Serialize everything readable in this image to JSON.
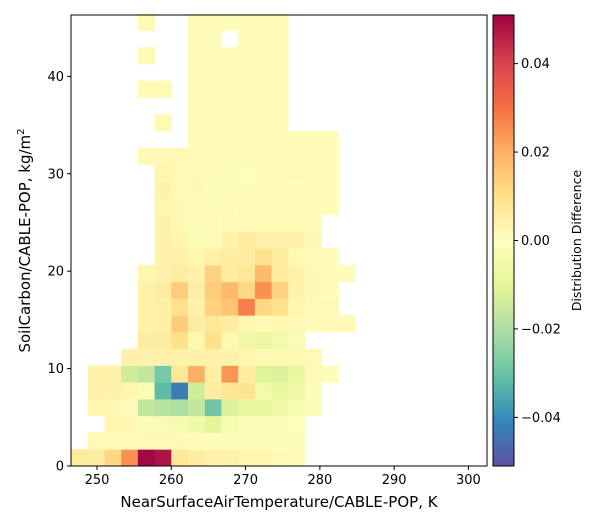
{
  "chart_data": {
    "type": "heatmap",
    "xlabel": "NearSurfaceAirTemperature/CABLE-POP,  K",
    "ylabel_main": "SoilCarbon/CABLE-POP,  kg/m",
    "ylabel_sup": "2",
    "xlim": [
      246.5,
      302.5
    ],
    "ylim": [
      0,
      46.3
    ],
    "xticks": [
      250,
      260,
      270,
      280,
      290,
      300
    ],
    "yticks": [
      0,
      10,
      20,
      30,
      40
    ],
    "colorbar": {
      "label": "Distribution Difference",
      "vmin": -0.051,
      "vmax": 0.051,
      "ticks": [
        -0.04,
        -0.02,
        0.0,
        0.02,
        0.04
      ],
      "tick_labels": [
        "−0.04",
        "−0.02",
        "0.00",
        "0.02",
        "0.04"
      ],
      "colormap": "Spectral_r"
    },
    "bin_edges_x": [
      246.5,
      248.75,
      251.0,
      253.25,
      255.5,
      257.75,
      260.0,
      262.25,
      264.5,
      266.75,
      269.0,
      271.25,
      273.5,
      275.75,
      278.0,
      280.25,
      282.5,
      284.75
    ],
    "bin_edges_y": [
      0,
      1.72,
      3.44,
      5.16,
      6.88,
      8.6,
      10.32,
      12.04,
      13.76,
      15.48,
      17.2,
      18.92,
      20.64,
      22.36,
      24.08,
      25.8,
      27.52,
      29.24,
      30.96,
      32.68,
      34.4,
      36.12,
      37.84,
      39.56,
      41.28,
      43.0,
      44.72,
      46.44
    ],
    "cells": [
      [
        0,
        0,
        0.007
      ],
      [
        1,
        0,
        0.006
      ],
      [
        2,
        0,
        0.012
      ],
      [
        3,
        0,
        0.025
      ],
      [
        4,
        0,
        0.05
      ],
      [
        5,
        0,
        0.048
      ],
      [
        6,
        0,
        0.008
      ],
      [
        7,
        0,
        0.006
      ],
      [
        8,
        0,
        0.004
      ],
      [
        9,
        0,
        0.004
      ],
      [
        10,
        0,
        0.003
      ],
      [
        11,
        0,
        0.003
      ],
      [
        12,
        0,
        0.002
      ],
      [
        13,
        0,
        0.001
      ],
      [
        1,
        1,
        0.002
      ],
      [
        2,
        1,
        0.002
      ],
      [
        3,
        1,
        0.002
      ],
      [
        4,
        1,
        0.002
      ],
      [
        5,
        1,
        0.002
      ],
      [
        6,
        1,
        0.002
      ],
      [
        7,
        1,
        0.001
      ],
      [
        8,
        1,
        0.001
      ],
      [
        9,
        1,
        0.001
      ],
      [
        10,
        1,
        0.001
      ],
      [
        11,
        1,
        0.001
      ],
      [
        12,
        1,
        0.001
      ],
      [
        13,
        1,
        0.001
      ],
      [
        2,
        2,
        0.003
      ],
      [
        3,
        2,
        0.002
      ],
      [
        4,
        2,
        -0.002
      ],
      [
        5,
        2,
        -0.003
      ],
      [
        6,
        2,
        -0.004
      ],
      [
        7,
        2,
        -0.006
      ],
      [
        8,
        2,
        -0.01
      ],
      [
        9,
        2,
        -0.004
      ],
      [
        10,
        2,
        -0.003
      ],
      [
        11,
        2,
        -0.002
      ],
      [
        12,
        2,
        -0.002
      ],
      [
        13,
        2,
        -0.001
      ],
      [
        1,
        3,
        0.003
      ],
      [
        2,
        3,
        0.002
      ],
      [
        3,
        3,
        0.001
      ],
      [
        4,
        3,
        -0.016
      ],
      [
        5,
        3,
        -0.018
      ],
      [
        6,
        3,
        -0.02
      ],
      [
        7,
        3,
        -0.016
      ],
      [
        8,
        3,
        -0.029
      ],
      [
        9,
        3,
        -0.012
      ],
      [
        10,
        3,
        -0.008
      ],
      [
        11,
        3,
        -0.009
      ],
      [
        12,
        3,
        -0.006
      ],
      [
        13,
        3,
        -0.004
      ],
      [
        14,
        3,
        0.001
      ],
      [
        1,
        4,
        0.004
      ],
      [
        2,
        4,
        0.004
      ],
      [
        3,
        4,
        0.003
      ],
      [
        4,
        4,
        -0.002
      ],
      [
        5,
        4,
        -0.032
      ],
      [
        6,
        4,
        -0.043
      ],
      [
        7,
        4,
        -0.014
      ],
      [
        8,
        4,
        0.006
      ],
      [
        9,
        4,
        0.008
      ],
      [
        10,
        4,
        0.009
      ],
      [
        11,
        4,
        -0.005
      ],
      [
        12,
        4,
        -0.008
      ],
      [
        13,
        4,
        -0.006
      ],
      [
        14,
        4,
        0.001
      ],
      [
        1,
        5,
        0.004
      ],
      [
        2,
        5,
        0.004
      ],
      [
        3,
        5,
        -0.014
      ],
      [
        4,
        5,
        -0.016
      ],
      [
        5,
        5,
        -0.028
      ],
      [
        6,
        5,
        0.008
      ],
      [
        7,
        5,
        0.02
      ],
      [
        8,
        5,
        0.005
      ],
      [
        9,
        5,
        0.024
      ],
      [
        10,
        5,
        0.006
      ],
      [
        11,
        5,
        -0.011
      ],
      [
        12,
        5,
        -0.012
      ],
      [
        13,
        5,
        -0.008
      ],
      [
        14,
        5,
        0.002
      ],
      [
        15,
        5,
        0.001
      ],
      [
        3,
        6,
        0.004
      ],
      [
        4,
        6,
        0.004
      ],
      [
        5,
        6,
        0.004
      ],
      [
        6,
        6,
        0.004
      ],
      [
        7,
        6,
        0.004
      ],
      [
        8,
        6,
        0.004
      ],
      [
        9,
        6,
        0.004
      ],
      [
        10,
        6,
        0.003
      ],
      [
        11,
        6,
        0.002
      ],
      [
        12,
        6,
        0.002
      ],
      [
        13,
        6,
        0.002
      ],
      [
        14,
        6,
        0.002
      ],
      [
        4,
        7,
        0.006
      ],
      [
        5,
        7,
        0.006
      ],
      [
        6,
        7,
        0.01
      ],
      [
        7,
        7,
        0.003
      ],
      [
        8,
        7,
        0.01
      ],
      [
        9,
        7,
        0.002
      ],
      [
        10,
        7,
        -0.006
      ],
      [
        11,
        7,
        -0.007
      ],
      [
        12,
        7,
        -0.005
      ],
      [
        13,
        7,
        -0.003
      ]
    ],
    "cells_upper": [
      [
        4,
        8,
        0.004
      ],
      [
        5,
        8,
        0.005
      ],
      [
        6,
        8,
        0.014
      ],
      [
        7,
        8,
        0.006
      ],
      [
        8,
        8,
        0.008
      ],
      [
        9,
        8,
        0.006
      ],
      [
        10,
        8,
        0.003
      ],
      [
        11,
        8,
        0.002
      ],
      [
        12,
        8,
        0.003
      ],
      [
        13,
        8,
        0.002
      ],
      [
        14,
        8,
        0.001
      ],
      [
        15,
        8,
        0.002
      ],
      [
        16,
        8,
        0.002
      ],
      [
        4,
        9,
        0.004
      ],
      [
        5,
        9,
        0.005
      ],
      [
        6,
        9,
        0.01
      ],
      [
        7,
        9,
        0.004
      ],
      [
        8,
        9,
        0.013
      ],
      [
        9,
        9,
        0.016
      ],
      [
        10,
        9,
        0.028
      ],
      [
        11,
        9,
        0.012
      ],
      [
        12,
        9,
        0.01
      ],
      [
        13,
        9,
        0.003
      ],
      [
        14,
        9,
        0.002
      ],
      [
        15,
        9,
        0.002
      ],
      [
        4,
        10,
        0.004
      ],
      [
        5,
        10,
        0.006
      ],
      [
        6,
        10,
        0.014
      ],
      [
        7,
        10,
        0.005
      ],
      [
        8,
        10,
        0.014
      ],
      [
        9,
        10,
        0.018
      ],
      [
        10,
        10,
        0.012
      ],
      [
        11,
        10,
        0.025
      ],
      [
        12,
        10,
        0.013
      ],
      [
        13,
        10,
        0.004
      ],
      [
        14,
        10,
        0.002
      ],
      [
        15,
        10,
        0.001
      ],
      [
        4,
        11,
        0.003
      ],
      [
        5,
        11,
        0.004
      ],
      [
        6,
        11,
        0.006
      ],
      [
        7,
        11,
        0.004
      ],
      [
        8,
        11,
        0.013
      ],
      [
        9,
        11,
        0.006
      ],
      [
        10,
        11,
        0.008
      ],
      [
        11,
        11,
        0.018
      ],
      [
        12,
        11,
        0.007
      ],
      [
        13,
        11,
        0.004
      ],
      [
        14,
        11,
        0.002
      ],
      [
        15,
        11,
        0.001
      ],
      [
        16,
        11,
        0.001
      ],
      [
        5,
        12,
        0.004
      ],
      [
        6,
        12,
        0.004
      ],
      [
        7,
        12,
        0.003
      ],
      [
        8,
        12,
        0.005
      ],
      [
        9,
        12,
        0.006
      ],
      [
        10,
        12,
        0.006
      ],
      [
        11,
        12,
        0.01
      ],
      [
        12,
        12,
        0.007
      ],
      [
        13,
        12,
        0.002
      ],
      [
        14,
        12,
        0.001
      ],
      [
        15,
        12,
        0.001
      ],
      [
        5,
        13,
        0.004
      ],
      [
        6,
        13,
        0.003
      ],
      [
        7,
        13,
        -0.002
      ],
      [
        8,
        13,
        0.001
      ],
      [
        9,
        13,
        0.004
      ],
      [
        10,
        13,
        0.006
      ],
      [
        11,
        13,
        0.004
      ],
      [
        12,
        13,
        0.004
      ],
      [
        13,
        13,
        0.004
      ],
      [
        14,
        13,
        0.002
      ],
      [
        5,
        14,
        0.004
      ],
      [
        6,
        14,
        0.002
      ],
      [
        7,
        14,
        0.001
      ],
      [
        8,
        14,
        0.001
      ],
      [
        9,
        14,
        0.002
      ],
      [
        10,
        14,
        0.002
      ],
      [
        11,
        14,
        0.001
      ],
      [
        12,
        14,
        0.002
      ],
      [
        13,
        14,
        0.002
      ],
      [
        14,
        14,
        0.001
      ],
      [
        5,
        15,
        0.003
      ],
      [
        6,
        15,
        0.002
      ],
      [
        7,
        15,
        0.001
      ],
      [
        8,
        15,
        0.001
      ],
      [
        9,
        15,
        0.001
      ],
      [
        10,
        15,
        0.002
      ],
      [
        11,
        15,
        0.001
      ],
      [
        12,
        15,
        0.002
      ],
      [
        13,
        15,
        0.001
      ],
      [
        14,
        15,
        0.001
      ],
      [
        15,
        15,
        0.001
      ],
      [
        5,
        16,
        0.004
      ],
      [
        6,
        16,
        0.002
      ],
      [
        7,
        16,
        0.002
      ],
      [
        8,
        16,
        -0.002
      ],
      [
        9,
        16,
        0.001
      ],
      [
        10,
        16,
        0.001
      ],
      [
        11,
        16,
        0.001
      ],
      [
        12,
        16,
        0.001
      ],
      [
        13,
        16,
        0.001
      ],
      [
        14,
        16,
        0.002
      ],
      [
        15,
        16,
        0.001
      ],
      [
        5,
        17,
        0.003
      ],
      [
        6,
        17,
        0.002
      ],
      [
        7,
        17,
        0.002
      ],
      [
        8,
        17,
        0.001
      ],
      [
        9,
        17,
        0.001
      ],
      [
        10,
        17,
        -0.001
      ],
      [
        11,
        17,
        0.001
      ],
      [
        12,
        17,
        0.001
      ],
      [
        13,
        17,
        0.002
      ],
      [
        14,
        17,
        0.001
      ],
      [
        15,
        17,
        0.001
      ],
      [
        4,
        18,
        0.002
      ],
      [
        5,
        18,
        0.002
      ],
      [
        6,
        18,
        0.002
      ],
      [
        7,
        18,
        0.002
      ],
      [
        8,
        18,
        0.001
      ],
      [
        9,
        18,
        0.001
      ],
      [
        10,
        18,
        0.001
      ],
      [
        11,
        18,
        0.001
      ],
      [
        12,
        18,
        0.001
      ],
      [
        13,
        18,
        0.001
      ],
      [
        14,
        18,
        0.001
      ],
      [
        15,
        18,
        0.001
      ],
      [
        7,
        19,
        0.001
      ],
      [
        8,
        19,
        0.001
      ],
      [
        9,
        19,
        0.001
      ],
      [
        10,
        19,
        0.001
      ],
      [
        11,
        19,
        0.001
      ],
      [
        12,
        19,
        0.001
      ],
      [
        13,
        19,
        0.001
      ],
      [
        14,
        19,
        0.001
      ],
      [
        15,
        19,
        0.001
      ],
      [
        5,
        20,
        0.002
      ],
      [
        7,
        20,
        0.001
      ],
      [
        8,
        20,
        0.001
      ],
      [
        9,
        20,
        0.001
      ],
      [
        10,
        20,
        0.001
      ],
      [
        11,
        20,
        0.001
      ],
      [
        12,
        20,
        0.001
      ],
      [
        7,
        21,
        0.001
      ],
      [
        8,
        21,
        0.001
      ],
      [
        9,
        21,
        0.001
      ],
      [
        10,
        21,
        0.001
      ],
      [
        11,
        21,
        0.001
      ],
      [
        12,
        21,
        0.001
      ],
      [
        4,
        22,
        0.002
      ],
      [
        5,
        22,
        0.002
      ],
      [
        7,
        22,
        0.001
      ],
      [
        8,
        22,
        0.001
      ],
      [
        9,
        22,
        0.001
      ],
      [
        10,
        22,
        0.001
      ],
      [
        11,
        22,
        0.001
      ],
      [
        12,
        22,
        0.001
      ],
      [
        7,
        23,
        0.001
      ],
      [
        8,
        23,
        0.001
      ],
      [
        9,
        23,
        0.001
      ],
      [
        10,
        23,
        0.001
      ],
      [
        11,
        23,
        0.001
      ],
      [
        12,
        23,
        0.001
      ],
      [
        4,
        24,
        0.002
      ],
      [
        7,
        24,
        0.001
      ],
      [
        8,
        24,
        0.001
      ],
      [
        9,
        24,
        0.001
      ],
      [
        10,
        24,
        0.001
      ],
      [
        11,
        24,
        0.001
      ],
      [
        12,
        24,
        0.001
      ],
      [
        7,
        25,
        0.001
      ],
      [
        8,
        25,
        0.001
      ],
      [
        10,
        25,
        0.001
      ],
      [
        11,
        25,
        0.001
      ],
      [
        12,
        25,
        0.001
      ],
      [
        7,
        26,
        0.001
      ],
      [
        8,
        26,
        0.001
      ],
      [
        9,
        26,
        0.001
      ],
      [
        10,
        26,
        0.001
      ],
      [
        11,
        26,
        0.001
      ],
      [
        12,
        26,
        0.001
      ],
      [
        4,
        26,
        0.002
      ]
    ]
  }
}
